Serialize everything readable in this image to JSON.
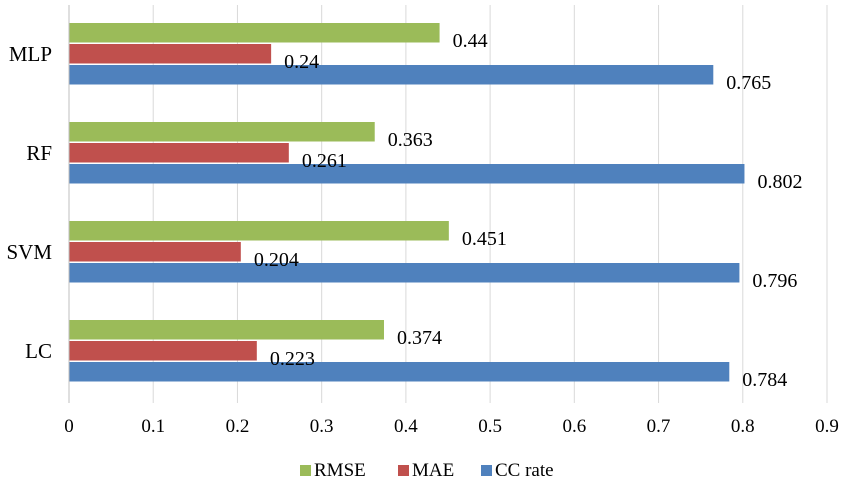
{
  "chart_data": {
    "type": "bar",
    "orientation": "horizontal",
    "title": "",
    "xlabel": "",
    "ylabel": "",
    "categories": [
      "MLP",
      "RF",
      "SVM",
      "LC"
    ],
    "series": [
      {
        "name": "RMSE",
        "color": "#9BBB59",
        "values": [
          0.44,
          0.363,
          0.451,
          0.374
        ],
        "labels": [
          "0.44",
          "0.363",
          "0.451",
          "0.374"
        ]
      },
      {
        "name": "MAE",
        "color": "#C0504D",
        "values": [
          0.24,
          0.261,
          0.204,
          0.223
        ],
        "labels": [
          "0.24",
          "0.261",
          "0.204",
          "0.223"
        ]
      },
      {
        "name": "CC rate",
        "color": "#4F81BD",
        "values": [
          0.765,
          0.802,
          0.796,
          0.784
        ],
        "labels": [
          "0.765",
          "0.802",
          "0.796",
          "0.784"
        ]
      }
    ],
    "xlim": [
      0,
      0.9
    ],
    "xticks": [
      "0",
      "0.1",
      "0.2",
      "0.3",
      "0.4",
      "0.5",
      "0.6",
      "0.7",
      "0.8",
      "0.9"
    ],
    "grid": "vertical",
    "legend": "bottom"
  }
}
